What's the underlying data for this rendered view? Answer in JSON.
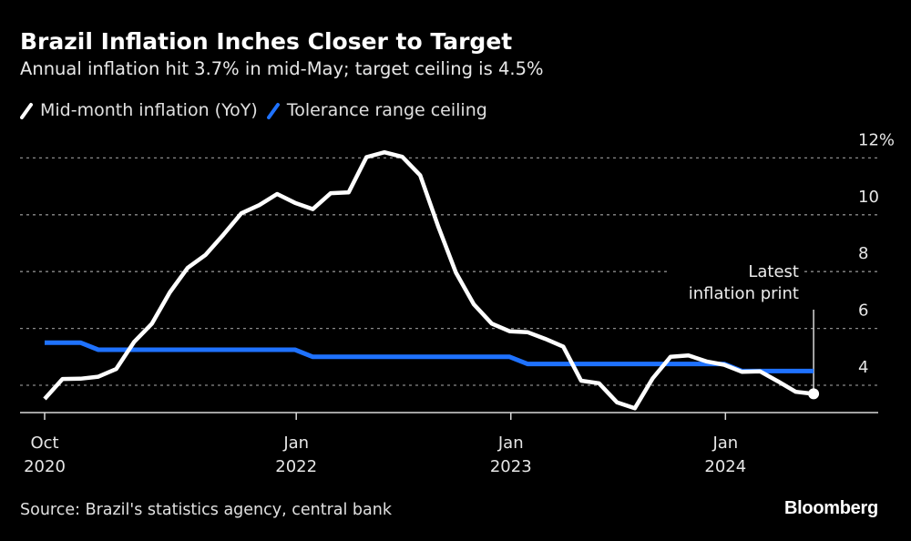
{
  "header": {
    "title": "Brazil Inflation Inches Closer to Target",
    "subtitle": "Annual inflation hit 3.7% in mid-May; target ceiling is 4.5%"
  },
  "legend": [
    {
      "label": "Mid-month inflation (YoY)",
      "color": "#ffffff"
    },
    {
      "label": "Tolerance range ceiling",
      "color": "#1f72ff"
    }
  ],
  "footer": {
    "source": "Source: Brazil's statistics agency, central bank",
    "brand": "Bloomberg"
  },
  "chart_data": {
    "type": "line",
    "title": "Brazil Inflation Inches Closer to Target",
    "subtitle": "Annual inflation hit 3.7% in mid-May; target ceiling is 4.5%",
    "xlabel": "",
    "ylabel": "",
    "x": [
      "2020-10",
      "2020-11",
      "2020-12",
      "2021-01",
      "2021-02",
      "2021-03",
      "2021-04",
      "2021-05",
      "2021-06",
      "2021-07",
      "2021-08",
      "2021-09",
      "2021-10",
      "2021-11",
      "2021-12",
      "2022-01",
      "2022-02",
      "2022-03",
      "2022-04",
      "2022-05",
      "2022-06",
      "2022-07",
      "2022-08",
      "2022-09",
      "2022-10",
      "2022-11",
      "2022-12",
      "2023-01",
      "2023-02",
      "2023-03",
      "2023-04",
      "2023-05",
      "2023-06",
      "2023-07",
      "2023-08",
      "2023-09",
      "2023-10",
      "2023-11",
      "2023-12",
      "2024-01",
      "2024-02",
      "2024-03",
      "2024-04",
      "2024-05"
    ],
    "series": [
      {
        "name": "Mid-month inflation (YoY)",
        "color": "#ffffff",
        "values": [
          3.52,
          4.22,
          4.23,
          4.3,
          4.57,
          5.52,
          6.17,
          7.27,
          8.13,
          8.59,
          9.3,
          10.05,
          10.34,
          10.73,
          10.42,
          10.2,
          10.76,
          10.79,
          12.03,
          12.2,
          12.04,
          11.39,
          9.6,
          7.96,
          6.85,
          6.17,
          5.9,
          5.87,
          5.63,
          5.36,
          4.16,
          4.07,
          3.4,
          3.19,
          4.24,
          5.0,
          5.05,
          4.84,
          4.72,
          4.47,
          4.49,
          4.14,
          3.77,
          3.7
        ]
      },
      {
        "name": "Tolerance range ceiling",
        "color": "#1f72ff",
        "values": [
          5.5,
          5.5,
          5.5,
          5.25,
          5.25,
          5.25,
          5.25,
          5.25,
          5.25,
          5.25,
          5.25,
          5.25,
          5.25,
          5.25,
          5.25,
          5.0,
          5.0,
          5.0,
          5.0,
          5.0,
          5.0,
          5.0,
          5.0,
          5.0,
          5.0,
          5.0,
          5.0,
          4.75,
          4.75,
          4.75,
          4.75,
          4.75,
          4.75,
          4.75,
          4.75,
          4.75,
          4.75,
          4.75,
          4.75,
          4.5,
          4.5,
          4.5,
          4.5,
          4.5
        ]
      }
    ],
    "ylim": [
      3,
      12.7
    ],
    "y_ticks": [
      {
        "value": 12,
        "label": "12%"
      },
      {
        "value": 10,
        "label": "10"
      },
      {
        "value": 8,
        "label": "8"
      },
      {
        "value": 6,
        "label": "6"
      },
      {
        "value": 4,
        "label": "4"
      }
    ],
    "x_ticks": [
      {
        "at": "2020-10",
        "line1": "Oct",
        "line2": "2020"
      },
      {
        "at": "2022-01",
        "line1": "Jan",
        "line2": "2022"
      },
      {
        "at": "2023-01",
        "line1": "Jan",
        "line2": "2023"
      },
      {
        "at": "2024-01",
        "line1": "Jan",
        "line2": "2024"
      }
    ],
    "grid": true,
    "legend_position": "top-left",
    "annotation": {
      "at": "2024-05",
      "value": 3.7,
      "line1": "Latest",
      "line2": "inflation print"
    }
  }
}
